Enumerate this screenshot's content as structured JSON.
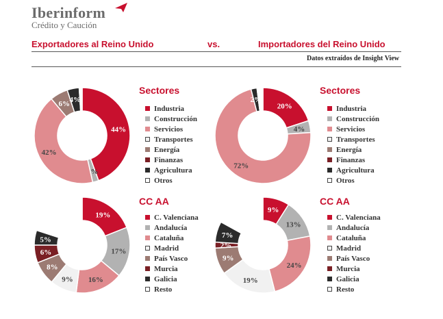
{
  "brand": {
    "name": "Iberinform",
    "tagline": "Crédito y Caución"
  },
  "header": {
    "left": "Exportadores al Reino Unido",
    "vs": "vs.",
    "right": "Importadores del Reino Unido",
    "source": "Datos extraídos de Insight View"
  },
  "colors": {
    "accent": "#c8102e"
  },
  "chart_data": [
    {
      "type": "pie",
      "title": "Sectores",
      "group": "Exportadores al Reino Unido",
      "labels": [
        "Industria",
        "Construcción",
        "Servicios",
        "Transportes",
        "Energía",
        "Finanzas",
        "Agricultura",
        "Otros"
      ],
      "values": [
        44,
        2,
        42,
        0,
        6,
        0,
        4,
        1
      ],
      "data_labels": [
        "44%",
        "2%",
        "42%",
        "",
        "6%",
        "",
        "4%",
        ""
      ],
      "colors": [
        "#c8102e",
        "#b2b2b2",
        "#e08b8f",
        "#f1f1f1",
        "#9c7b73",
        "#7a1f24",
        "#2b2b2b",
        "#ffffff"
      ]
    },
    {
      "type": "pie",
      "title": "Sectores",
      "group": "Importadores del Reino Unido",
      "labels": [
        "Industria",
        "Construcción",
        "Servicios",
        "Transportes",
        "Energía",
        "Finanzas",
        "Agricultura",
        "Otros"
      ],
      "values": [
        20,
        4,
        72,
        0,
        0,
        0,
        2,
        2
      ],
      "data_labels": [
        "20%",
        "4%",
        "72%",
        "",
        "",
        "",
        "2%",
        ""
      ],
      "colors": [
        "#c8102e",
        "#b2b2b2",
        "#e08b8f",
        "#f1f1f1",
        "#9c7b73",
        "#7a1f24",
        "#2b2b2b",
        "#ffffff"
      ]
    },
    {
      "type": "pie",
      "title": "CC AA",
      "group": "Exportadores al Reino Unido",
      "labels": [
        "C. Valenciana",
        "Andalucía",
        "Cataluña",
        "Madrid",
        "País Vasco",
        "Murcia",
        "Galicia",
        "Resto"
      ],
      "values": [
        19,
        17,
        16,
        9,
        8,
        6,
        5,
        20
      ],
      "data_labels": [
        "19%",
        "17%",
        "16%",
        "9%",
        "8%",
        "6%",
        "5%",
        ""
      ],
      "colors": [
        "#c8102e",
        "#b2b2b2",
        "#e08b8f",
        "#f1f1f1",
        "#9c7b73",
        "#7a1f24",
        "#2b2b2b",
        "#ffffff"
      ]
    },
    {
      "type": "pie",
      "title": "CC AA",
      "group": "Importadores del Reino Unido",
      "labels": [
        "C. Valenciana",
        "Andalucía",
        "Cataluña",
        "Madrid",
        "País Vasco",
        "Murcia",
        "Galicia",
        "Resto"
      ],
      "values": [
        9,
        13,
        24,
        19,
        9,
        2,
        7,
        17
      ],
      "data_labels": [
        "9%",
        "13%",
        "24%",
        "19%",
        "9%",
        "2%",
        "7%",
        ""
      ],
      "colors": [
        "#c8102e",
        "#b2b2b2",
        "#e08b8f",
        "#f1f1f1",
        "#9c7b73",
        "#7a1f24",
        "#2b2b2b",
        "#ffffff"
      ]
    }
  ]
}
